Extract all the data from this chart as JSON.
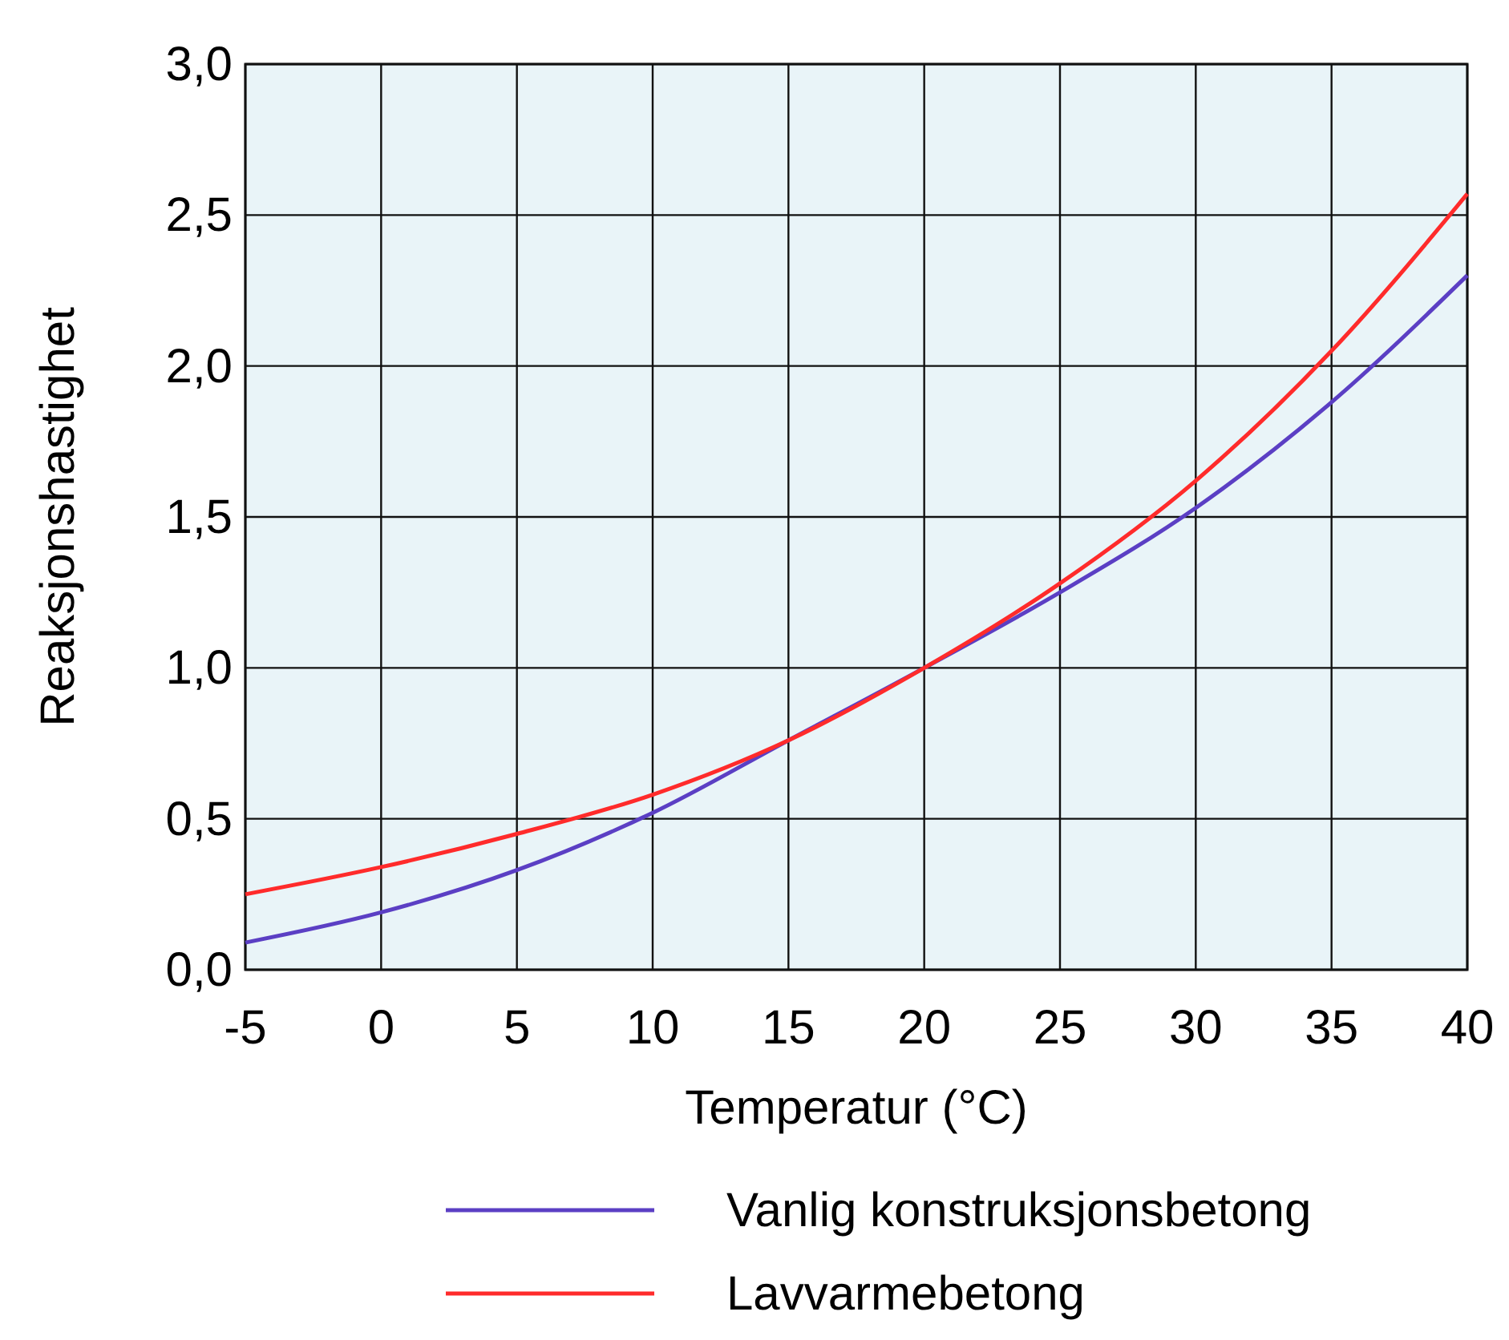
{
  "chart_data": {
    "type": "line",
    "xlabel": "Temperatur (°C)",
    "ylabel": "Reaksjonshastighet",
    "x": [
      -5,
      0,
      5,
      10,
      15,
      20,
      25,
      30,
      35,
      40
    ],
    "series": [
      {
        "name": "Vanlig konstruksjonsbetong",
        "color": "#5b3fc4",
        "values": [
          0.09,
          0.19,
          0.33,
          0.52,
          0.76,
          1.0,
          1.25,
          1.53,
          1.88,
          2.3
        ]
      },
      {
        "name": "Lavvarmebetong",
        "color": "#ff2b2b",
        "values": [
          0.25,
          0.34,
          0.45,
          0.58,
          0.76,
          1.0,
          1.28,
          1.62,
          2.05,
          2.57
        ]
      }
    ],
    "xlim": [
      -5,
      40
    ],
    "xticks": [
      -5,
      0,
      5,
      10,
      15,
      20,
      25,
      30,
      35,
      40
    ],
    "ylim": [
      0,
      3
    ],
    "yticks": [
      {
        "value": 0,
        "label": "0,0"
      },
      {
        "value": 0.5,
        "label": "0,5"
      },
      {
        "value": 1,
        "label": "1,0"
      },
      {
        "value": 1.5,
        "label": "1,5"
      },
      {
        "value": 2,
        "label": "2,0"
      },
      {
        "value": 2.5,
        "label": "2,5"
      },
      {
        "value": 3,
        "label": "3,0"
      }
    ],
    "grid": true,
    "legend": "bottom",
    "marker": "none",
    "line_style": "solid"
  }
}
